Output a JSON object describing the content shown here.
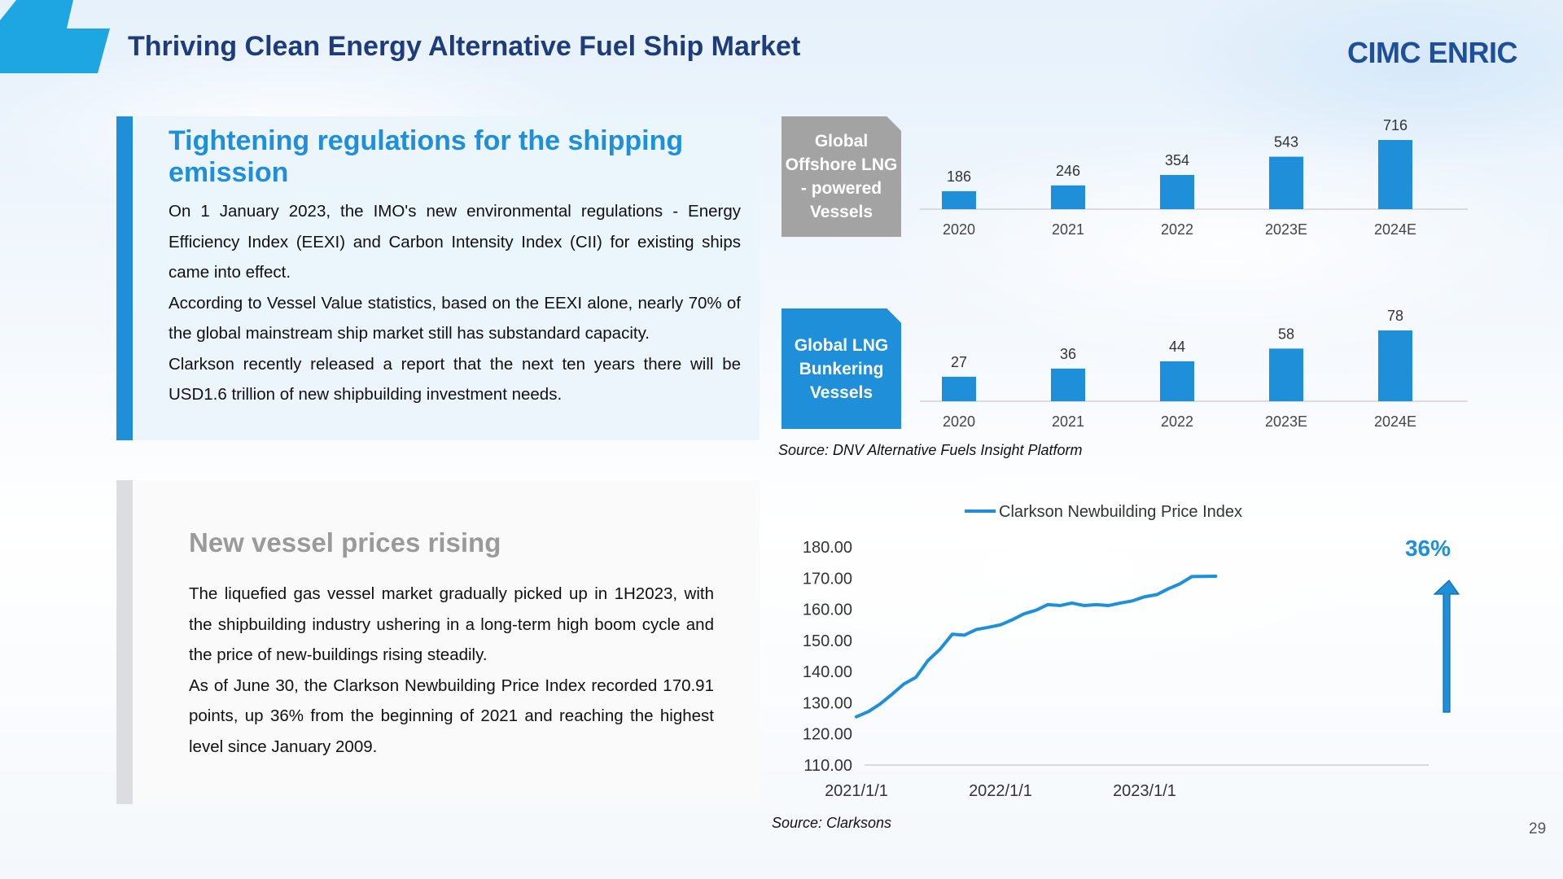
{
  "header": {
    "title": "Thriving Clean Energy Alternative Fuel Ship Market",
    "logo": "CIMC ENRIC",
    "page_number": "29"
  },
  "panel1": {
    "heading": "Tightening regulations for the shipping emission",
    "paragraphs": [
      "On 1 January 2023, the IMO's new environmental regulations - Energy Efficiency Index (EEXI) and Carbon Intensity Index (CII) for existing ships came into effect.",
      "According to Vessel Value statistics, based on the EEXI alone, nearly 70% of the global mainstream ship market still has substandard capacity.",
      "Clarkson recently released a report that the next ten years there will be USD1.6 trillion of new shipbuilding investment needs."
    ]
  },
  "panel2": {
    "heading": "New vessel prices rising",
    "paragraphs": [
      "The liquefied gas vessel market gradually picked up in 1H2023, with the shipbuilding industry ushering in a long-term high boom cycle and the price of new-buildings rising steadily.",
      "As of June 30, the Clarkson Newbuilding Price Index recorded 170.91 points, up 36% from the beginning of 2021 and reaching the highest level since January 2009."
    ]
  },
  "sources": {
    "bars": "Source: DNV Alternative Fuels Insight Platform",
    "line": "Source: Clarksons"
  },
  "colors": {
    "accent": "#1e8fd8",
    "title": "#1f3c7a",
    "grey_label": "#a3a3a3"
  },
  "chart_data": [
    {
      "type": "bar",
      "title": "Global Offshore LNG - powered Vessels",
      "categories": [
        "2020",
        "2021",
        "2022",
        "2023E",
        "2024E"
      ],
      "values": [
        186,
        246,
        354,
        543,
        716
      ],
      "ylim": [
        0,
        716
      ]
    },
    {
      "type": "bar",
      "title": "Global LNG Bunkering Vessels",
      "categories": [
        "2020",
        "2021",
        "2022",
        "2023E",
        "2024E"
      ],
      "values": [
        27,
        36,
        44,
        58,
        78
      ],
      "ylim": [
        0,
        78
      ]
    },
    {
      "type": "line",
      "series": [
        {
          "name": "Clarkson Newbuilding Price Index",
          "x": [
            "2021/1/1",
            "2021/2/1",
            "2021/3/1",
            "2021/4/1",
            "2021/5/1",
            "2021/6/1",
            "2021/7/1",
            "2021/8/1",
            "2021/9/1",
            "2021/10/1",
            "2021/11/1",
            "2021/12/1",
            "2022/1/1",
            "2022/2/1",
            "2022/3/1",
            "2022/4/1",
            "2022/5/1",
            "2022/6/1",
            "2022/7/1",
            "2022/8/1",
            "2022/9/1",
            "2022/10/1",
            "2022/11/1",
            "2022/12/1",
            "2023/1/1",
            "2023/2/1",
            "2023/3/1",
            "2023/4/1",
            "2023/5/1",
            "2023/6/30"
          ],
          "values": [
            125.5,
            127.5,
            129.5,
            133.0,
            136.0,
            138.5,
            143.5,
            147.5,
            152.0,
            152.0,
            153.5,
            154.5,
            155.0,
            157.0,
            158.5,
            160.0,
            161.5,
            161.5,
            162.0,
            161.5,
            161.5,
            161.5,
            162.0,
            163.0,
            164.0,
            165.0,
            166.5,
            168.5,
            170.5,
            170.91
          ]
        }
      ],
      "ylim": [
        110,
        180
      ],
      "yticks": [
        "180.00",
        "170.00",
        "160.00",
        "150.00",
        "140.00",
        "130.00",
        "120.00",
        "110.00"
      ],
      "xticks": [
        "2021/1/1",
        "2022/1/1",
        "2023/1/1"
      ],
      "annotation": "36%",
      "legend": "top"
    }
  ]
}
